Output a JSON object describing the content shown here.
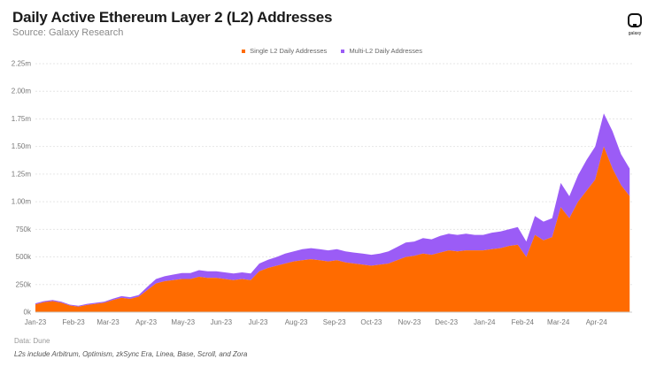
{
  "header": {
    "title": "Daily Active Ethereum Layer 2 (L2) Addresses",
    "subtitle": "Source: Galaxy Research",
    "logo_text": "galaxy"
  },
  "legend": [
    {
      "label": "Single L2 Daily Addresses",
      "color": "#FF6B00"
    },
    {
      "label": "Multi-L2 Daily Addresses",
      "color": "#9B5CF6"
    }
  ],
  "footer": {
    "note_data": "Data: Dune",
    "note_l2s": "L2s include Arbitrum, Optimism, zkSync Era, Linea, Base, Scroll, and Zora"
  },
  "chart_data": {
    "type": "area",
    "stacked": true,
    "title": "Daily Active Ethereum Layer 2 (L2) Addresses",
    "ylim": [
      0,
      2250000
    ],
    "yticks": [
      0,
      250000,
      500000,
      750000,
      1000000,
      1250000,
      1500000,
      1750000,
      2000000,
      2250000
    ],
    "ytick_labels": [
      "0k",
      "250k",
      "500k",
      "750k",
      "1.00m",
      "1.25m",
      "1.50m",
      "1.75m",
      "2.00m",
      "2.25m"
    ],
    "xlim": [
      "2023-01-01",
      "2024-04-30"
    ],
    "xticks": [
      "2023-01-01",
      "2023-02-01",
      "2023-03-01",
      "2023-04-01",
      "2023-05-01",
      "2023-06-01",
      "2023-07-01",
      "2023-08-01",
      "2023-09-01",
      "2023-10-01",
      "2023-11-01",
      "2023-12-01",
      "2024-01-01",
      "2024-02-01",
      "2024-03-01",
      "2024-04-01"
    ],
    "xtick_labels": [
      "Jan-23",
      "Feb-23",
      "Mar-23",
      "Apr-23",
      "May-23",
      "Jun-23",
      "Jul-23",
      "Aug-23",
      "Sep-23",
      "Oct-23",
      "Nov-23",
      "Dec-23",
      "Jan-24",
      "Feb-24",
      "Mar-24",
      "Apr-24"
    ],
    "grid": true,
    "legend_position": "top",
    "x": [
      "2023-01-01",
      "2023-01-08",
      "2023-01-15",
      "2023-01-22",
      "2023-01-29",
      "2023-02-05",
      "2023-02-12",
      "2023-02-19",
      "2023-02-26",
      "2023-03-05",
      "2023-03-12",
      "2023-03-19",
      "2023-03-26",
      "2023-04-02",
      "2023-04-09",
      "2023-04-16",
      "2023-04-23",
      "2023-04-30",
      "2023-05-07",
      "2023-05-14",
      "2023-05-21",
      "2023-05-28",
      "2023-06-04",
      "2023-06-11",
      "2023-06-18",
      "2023-06-25",
      "2023-07-02",
      "2023-07-09",
      "2023-07-16",
      "2023-07-23",
      "2023-07-30",
      "2023-08-06",
      "2023-08-13",
      "2023-08-20",
      "2023-08-27",
      "2023-09-03",
      "2023-09-10",
      "2023-09-17",
      "2023-09-24",
      "2023-10-01",
      "2023-10-08",
      "2023-10-15",
      "2023-10-22",
      "2023-10-29",
      "2023-11-05",
      "2023-11-12",
      "2023-11-19",
      "2023-11-26",
      "2023-12-03",
      "2023-12-10",
      "2023-12-17",
      "2023-12-24",
      "2023-12-31",
      "2024-01-07",
      "2024-01-14",
      "2024-01-21",
      "2024-01-28",
      "2024-02-04",
      "2024-02-11",
      "2024-02-18",
      "2024-02-25",
      "2024-03-03",
      "2024-03-10",
      "2024-03-17",
      "2024-03-24",
      "2024-03-31",
      "2024-04-07",
      "2024-04-14",
      "2024-04-21",
      "2024-04-28"
    ],
    "series": [
      {
        "name": "Single L2 Daily Addresses",
        "color": "#FF6B00",
        "values": [
          70000,
          90000,
          100000,
          85000,
          60000,
          50000,
          65000,
          75000,
          85000,
          110000,
          130000,
          120000,
          140000,
          200000,
          260000,
          280000,
          290000,
          300000,
          300000,
          320000,
          310000,
          310000,
          300000,
          290000,
          300000,
          290000,
          370000,
          400000,
          420000,
          440000,
          460000,
          470000,
          480000,
          470000,
          460000,
          470000,
          450000,
          440000,
          430000,
          420000,
          430000,
          440000,
          470000,
          500000,
          510000,
          530000,
          520000,
          540000,
          560000,
          550000,
          560000,
          560000,
          560000,
          570000,
          580000,
          600000,
          610000,
          500000,
          700000,
          650000,
          680000,
          950000,
          850000,
          1000000,
          1100000,
          1200000,
          1500000,
          1300000,
          1150000,
          1050000
        ]
      },
      {
        "name": "Multi-L2 Daily Addresses",
        "color": "#9B5CF6",
        "values": [
          10000,
          10000,
          10000,
          10000,
          8000,
          8000,
          10000,
          10000,
          10000,
          12000,
          15000,
          15000,
          15000,
          30000,
          40000,
          45000,
          50000,
          55000,
          55000,
          60000,
          60000,
          60000,
          60000,
          60000,
          60000,
          60000,
          70000,
          75000,
          80000,
          90000,
          90000,
          100000,
          100000,
          100000,
          100000,
          100000,
          100000,
          100000,
          100000,
          100000,
          100000,
          110000,
          120000,
          130000,
          130000,
          140000,
          140000,
          150000,
          150000,
          150000,
          150000,
          140000,
          140000,
          150000,
          150000,
          150000,
          160000,
          140000,
          170000,
          170000,
          170000,
          220000,
          200000,
          240000,
          280000,
          300000,
          300000,
          340000,
          280000,
          250000
        ]
      }
    ]
  }
}
